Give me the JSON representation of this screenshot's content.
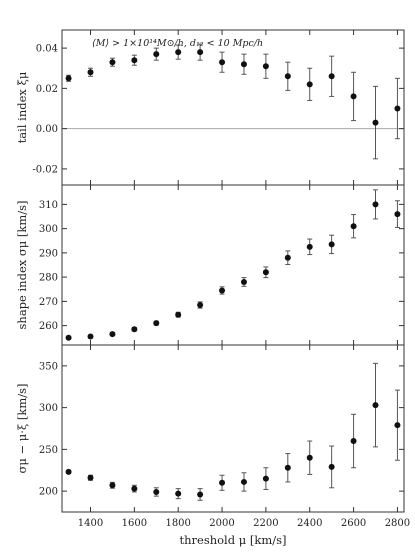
{
  "chart_data": [
    {
      "type": "scatter",
      "panel": "top",
      "title": "",
      "annotation": "⟨M⟩ > 1×10¹⁴M⊙/h, d₁₂ < 10 Mpc/h",
      "xlabel": "threshold μ  [km/s]",
      "ylabel": "tail index ξμ",
      "xlim": [
        1270,
        2830
      ],
      "ylim": [
        -0.028,
        0.049
      ],
      "yticks": [
        -0.02,
        0.0,
        0.02,
        0.04
      ],
      "ytick_labels": [
        "-0.02",
        "0.00",
        "0.02",
        "0.04"
      ],
      "reference_line": 0.0,
      "series": [
        {
          "x": [
            1300,
            1400,
            1500,
            1600,
            1700,
            1800,
            1900,
            2000,
            2100,
            2200,
            2300,
            2400,
            2500,
            2600,
            2700,
            2800
          ],
          "y": [
            0.025,
            0.028,
            0.033,
            0.034,
            0.037,
            0.038,
            0.038,
            0.033,
            0.032,
            0.031,
            0.026,
            0.022,
            0.026,
            0.016,
            0.003,
            0.01
          ],
          "err": [
            0.0015,
            0.002,
            0.002,
            0.0025,
            0.003,
            0.0035,
            0.004,
            0.005,
            0.005,
            0.006,
            0.007,
            0.008,
            0.01,
            0.012,
            0.018,
            0.015
          ]
        }
      ]
    },
    {
      "type": "scatter",
      "panel": "middle",
      "title": "",
      "xlabel": "threshold μ  [km/s]",
      "ylabel": "shape index σμ  [km/s]",
      "xlim": [
        1270,
        2830
      ],
      "ylim": [
        252,
        318
      ],
      "yticks": [
        260,
        270,
        280,
        290,
        300,
        310
      ],
      "ytick_labels": [
        "260",
        "270",
        "280",
        "290",
        "300",
        "310"
      ],
      "series": [
        {
          "x": [
            1300,
            1400,
            1500,
            1600,
            1700,
            1800,
            1900,
            2000,
            2100,
            2200,
            2300,
            2400,
            2500,
            2600,
            2700,
            2800
          ],
          "y": [
            255,
            255.5,
            256.5,
            258.5,
            261,
            264.5,
            268.5,
            274.5,
            278,
            282,
            288,
            292.5,
            293.5,
            301,
            310,
            306
          ],
          "err": [
            0.5,
            0.5,
            0.6,
            0.7,
            0.8,
            1.0,
            1.3,
            1.5,
            1.8,
            2.2,
            2.8,
            3.2,
            3.8,
            4.8,
            6.0,
            5.5
          ]
        }
      ]
    },
    {
      "type": "scatter",
      "panel": "bottom",
      "title": "",
      "xlabel": "threshold μ  [km/s]",
      "ylabel": "σμ − μ·ξ  [km/s]",
      "xlim": [
        1270,
        2830
      ],
      "ylim": [
        175,
        375
      ],
      "yticks": [
        200,
        250,
        300,
        350
      ],
      "ytick_labels": [
        "200",
        "250",
        "300",
        "350"
      ],
      "xticks": [
        1400,
        1600,
        1800,
        2000,
        2200,
        2400,
        2600,
        2800
      ],
      "xtick_labels": [
        "1400",
        "1600",
        "1800",
        "2000",
        "2200",
        "2400",
        "2600",
        "2800"
      ],
      "series": [
        {
          "x": [
            1300,
            1400,
            1500,
            1600,
            1700,
            1800,
            1900,
            2000,
            2100,
            2200,
            2300,
            2400,
            2500,
            2600,
            2700,
            2800
          ],
          "y": [
            223,
            216,
            207,
            203,
            199,
            197,
            196,
            210,
            211,
            215,
            228,
            240,
            229,
            260,
            303,
            279
          ],
          "err": [
            2,
            3,
            3.5,
            4,
            5,
            6,
            7,
            9,
            11,
            13,
            17,
            20,
            25,
            32,
            50,
            42
          ]
        }
      ]
    }
  ],
  "colors": {
    "marker": "#111111",
    "errorbar": "#555555",
    "frame": "#333333",
    "zero_line": "#aaaaaa"
  }
}
